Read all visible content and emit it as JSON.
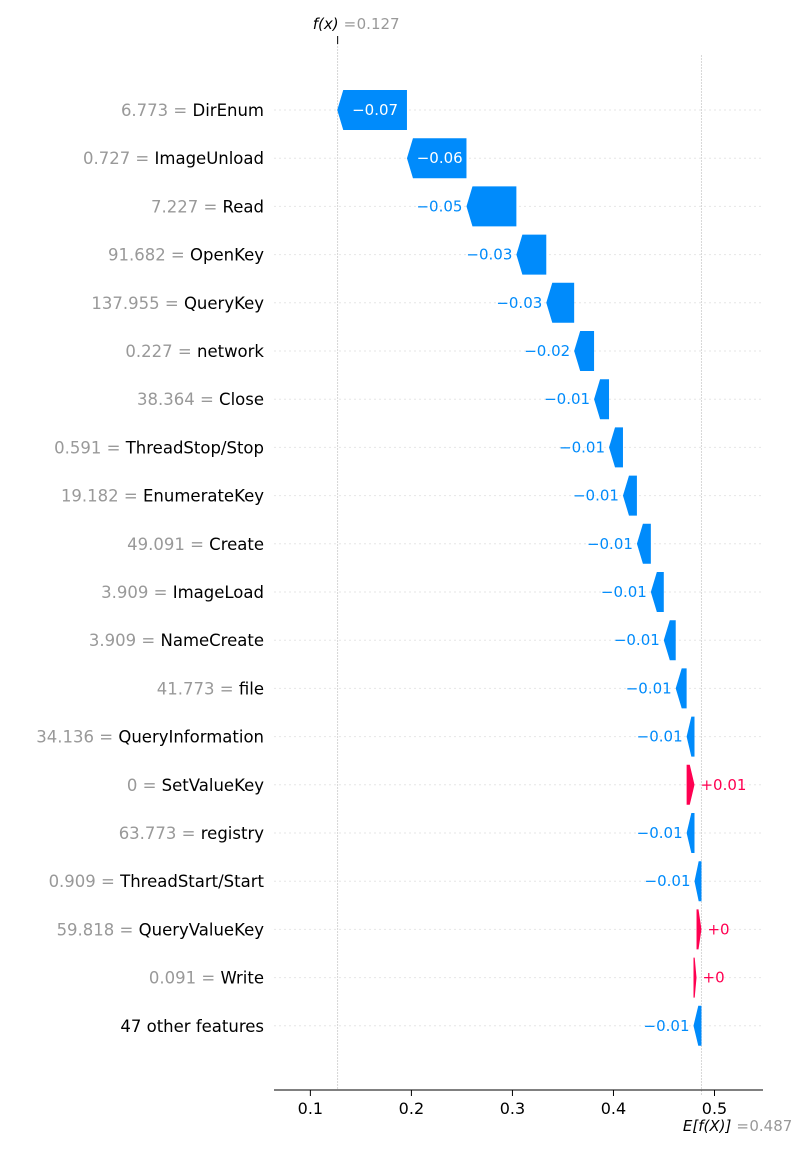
{
  "chart_data": {
    "type": "waterfall",
    "fx": {
      "label": "f(x)",
      "value_text": "0.127",
      "value": 0.127
    },
    "expected": {
      "label": "E[f(X)]",
      "value_text": "0.487",
      "value": 0.487
    },
    "xlim": [
      0.064,
      0.548
    ],
    "xticks": [
      {
        "value": 0.1,
        "label": "0.1"
      },
      {
        "value": 0.2,
        "label": "0.2"
      },
      {
        "value": 0.3,
        "label": "0.3"
      },
      {
        "value": 0.4,
        "label": "0.4"
      },
      {
        "value": 0.5,
        "label": "0.5"
      }
    ],
    "features": [
      {
        "value": "6.773",
        "name": "DirEnum",
        "label": "−0.07",
        "start": 0.1956,
        "end": 0.1266
      },
      {
        "value": "0.727",
        "name": "ImageUnload",
        "label": "−0.06",
        "start": 0.2545,
        "end": 0.1956
      },
      {
        "value": "7.227",
        "name": "Read",
        "label": "−0.05",
        "start": 0.3039,
        "end": 0.2545
      },
      {
        "value": "91.682",
        "name": "OpenKey",
        "label": "−0.03",
        "start": 0.3335,
        "end": 0.3039
      },
      {
        "value": "137.955",
        "name": "QueryKey",
        "label": "−0.03",
        "start": 0.3611,
        "end": 0.3335
      },
      {
        "value": "0.227",
        "name": "network",
        "label": "−0.02",
        "start": 0.3808,
        "end": 0.3611
      },
      {
        "value": "38.364",
        "name": "Close",
        "label": "−0.01",
        "start": 0.3956,
        "end": 0.3808
      },
      {
        "value": "0.591",
        "name": "ThreadStop/Stop",
        "label": "−0.01",
        "start": 0.4094,
        "end": 0.3956
      },
      {
        "value": "19.182",
        "name": "EnumerateKey",
        "label": "−0.01",
        "start": 0.4232,
        "end": 0.4094
      },
      {
        "value": "49.091",
        "name": "Create",
        "label": "−0.01",
        "start": 0.437,
        "end": 0.4232
      },
      {
        "value": "3.909",
        "name": "ImageLoad",
        "label": "−0.01",
        "start": 0.4498,
        "end": 0.437
      },
      {
        "value": "3.909",
        "name": "NameCreate",
        "label": "−0.01",
        "start": 0.4616,
        "end": 0.4498
      },
      {
        "value": "41.773",
        "name": "file",
        "label": "−0.01",
        "start": 0.4724,
        "end": 0.4616
      },
      {
        "value": "34.136",
        "name": "QueryInformation",
        "label": "−0.01",
        "start": 0.4802,
        "end": 0.4724
      },
      {
        "value": "0",
        "name": "SetValueKey",
        "label": "+0.01",
        "start": 0.4724,
        "end": 0.4802
      },
      {
        "value": "63.773",
        "name": "registry",
        "label": "−0.01",
        "start": 0.4802,
        "end": 0.4724
      },
      {
        "value": "0.909",
        "name": "ThreadStart/Start",
        "label": "−0.01",
        "start": 0.4871,
        "end": 0.4802
      },
      {
        "value": "59.818",
        "name": "QueryValueKey",
        "label": "+0",
        "start": 0.4822,
        "end": 0.4871
      },
      {
        "value": "0.091",
        "name": "Write",
        "label": "+0",
        "start": 0.4792,
        "end": 0.4822
      },
      {
        "value": "",
        "name": "47 other features",
        "label": "−0.01",
        "start": 0.4871,
        "end": 0.4792
      }
    ],
    "colors": {
      "negative": "#008bfb",
      "positive": "#ff0051",
      "grid": "#cccccc",
      "muted": "#999999"
    }
  }
}
